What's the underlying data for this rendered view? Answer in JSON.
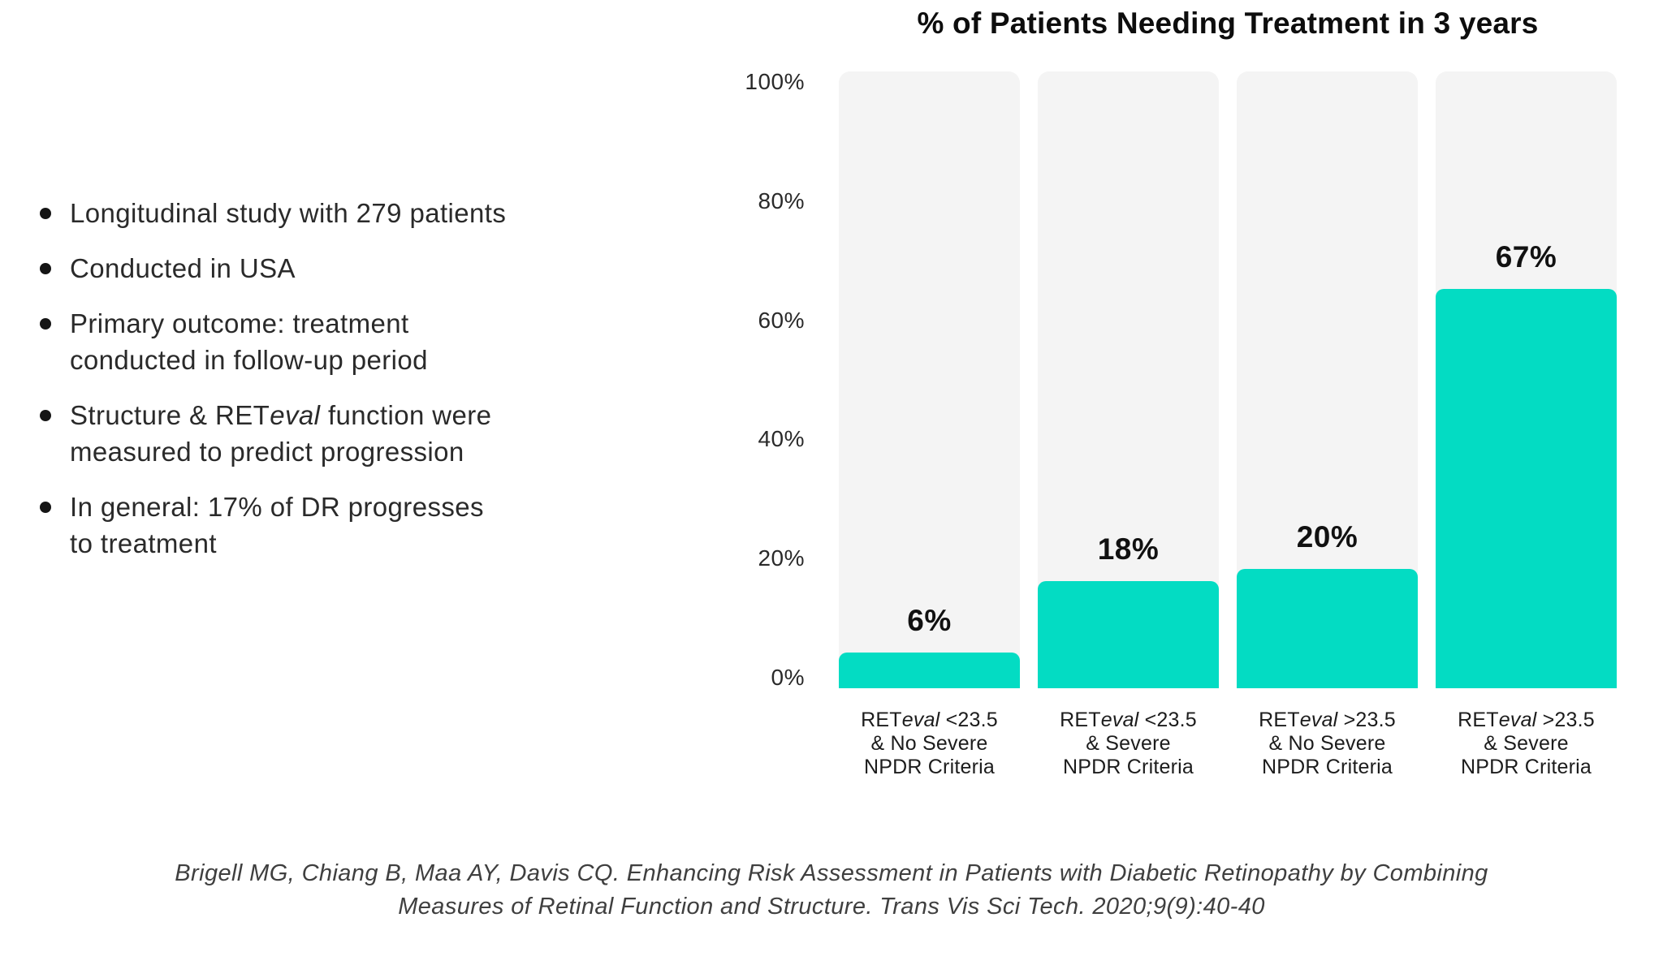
{
  "bullets": [
    {
      "lines": [
        [
          {
            "t": "Longitudinal study with 279 patients"
          }
        ]
      ]
    },
    {
      "lines": [
        [
          {
            "t": "Conducted in USA"
          }
        ]
      ]
    },
    {
      "lines": [
        [
          {
            "t": "Primary outcome: treatment"
          }
        ],
        [
          {
            "t": "conducted in follow-up period"
          }
        ]
      ]
    },
    {
      "lines": [
        [
          {
            "t": "Structure & RET"
          },
          {
            "t": "eval",
            "i": true
          },
          {
            "t": " function were"
          }
        ],
        [
          {
            "t": "measured to predict progression"
          }
        ]
      ]
    },
    {
      "lines": [
        [
          {
            "t": "In general: 17% of DR progresses"
          }
        ],
        [
          {
            "t": "to treatment"
          }
        ]
      ]
    }
  ],
  "chart_data": {
    "type": "bar",
    "title": "% of Patients Needing Treatment in 3 years",
    "categories": [
      "RETeval <23.5 & No Severe NPDR Criteria",
      "RETeval <23.5 & Severe NPDR Criteria",
      "RETeval >23.5 & No Severe NPDR Criteria",
      "RETeval >23.5 & Severe NPDR Criteria"
    ],
    "values": [
      6,
      18,
      20,
      67
    ],
    "value_labels": [
      "6%",
      "18%",
      "20%",
      "67%"
    ],
    "category_lines": [
      [
        [
          {
            "t": "RET"
          },
          {
            "t": "eval",
            "i": true
          },
          {
            "t": " <23.5"
          }
        ],
        [
          {
            "t": "& No Severe"
          }
        ],
        [
          {
            "t": "NPDR Criteria"
          }
        ]
      ],
      [
        [
          {
            "t": "RET"
          },
          {
            "t": "eval",
            "i": true
          },
          {
            "t": " <23.5"
          }
        ],
        [
          {
            "t": "& Severe"
          }
        ],
        [
          {
            "t": "NPDR Criteria"
          }
        ]
      ],
      [
        [
          {
            "t": "RET"
          },
          {
            "t": "eval",
            "i": true
          },
          {
            "t": " >23.5"
          }
        ],
        [
          {
            "t": "& No Severe"
          }
        ],
        [
          {
            "t": "NPDR Criteria"
          }
        ]
      ],
      [
        [
          {
            "t": "RET"
          },
          {
            "t": "eval",
            "i": true
          },
          {
            "t": " >23.5"
          }
        ],
        [
          {
            "t": "& Severe"
          }
        ],
        [
          {
            "t": "NPDR Criteria"
          }
        ]
      ]
    ],
    "y_ticks": [
      {
        "label": "100%",
        "value": 100
      },
      {
        "label": "80%",
        "value": 80
      },
      {
        "label": "60%",
        "value": 60
      },
      {
        "label": "40%",
        "value": 40
      },
      {
        "label": "20%",
        "value": 20
      },
      {
        "label": "0%",
        "value": 0
      }
    ],
    "ylim": [
      0,
      100
    ],
    "grid": false,
    "legend": false,
    "bar_color": "#03DCC3",
    "track_color": "#F4F4F4"
  },
  "citation": {
    "line1": "Brigell MG, Chiang B, Maa AY, Davis CQ. Enhancing Risk Assessment in Patients with Diabetic Retinopathy by Combining",
    "line2": "Measures of Retinal Function and Structure. Trans Vis Sci Tech. 2020;9(9):40-40"
  }
}
